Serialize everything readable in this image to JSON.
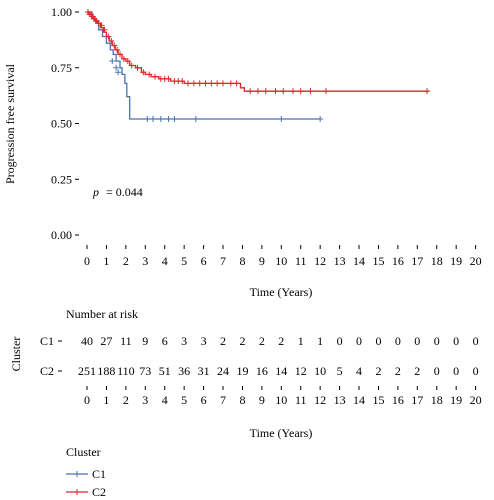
{
  "chart_data": {
    "type": "line",
    "subtype": "kaplan-meier",
    "ylabel": "Progression free survival",
    "xlabel": "Time (Years)",
    "xlim": [
      0,
      20
    ],
    "ylim": [
      0,
      1
    ],
    "x_ticks": [
      0,
      1,
      2,
      3,
      4,
      5,
      6,
      7,
      8,
      9,
      10,
      11,
      12,
      13,
      14,
      15,
      16,
      17,
      18,
      19,
      20
    ],
    "y_ticks": [
      "0.00",
      "0.25",
      "0.50",
      "0.75",
      "1.00"
    ],
    "y_tick_values": [
      0,
      0.25,
      0.5,
      0.75,
      1.0
    ],
    "annotation_p_label": "p",
    "annotation_p_value": "= 0.044",
    "series": [
      {
        "name": "C1",
        "color": "#4a72b0",
        "steps": [
          [
            0,
            1.0
          ],
          [
            0.25,
            0.97
          ],
          [
            0.45,
            0.95
          ],
          [
            0.6,
            0.92
          ],
          [
            0.8,
            0.89
          ],
          [
            1.0,
            0.86
          ],
          [
            1.2,
            0.83
          ],
          [
            1.35,
            0.81
          ],
          [
            1.5,
            0.78
          ],
          [
            1.7,
            0.75
          ],
          [
            1.8,
            0.72
          ],
          [
            1.95,
            0.68
          ],
          [
            2.05,
            0.62
          ],
          [
            2.2,
            0.52
          ],
          [
            12.0,
            0.52
          ]
        ],
        "censors": [
          [
            1.3,
            0.78
          ],
          [
            1.5,
            0.75
          ],
          [
            1.6,
            0.73
          ],
          [
            3.1,
            0.52
          ],
          [
            3.4,
            0.52
          ],
          [
            3.8,
            0.52
          ],
          [
            4.2,
            0.52
          ],
          [
            4.5,
            0.52
          ],
          [
            5.6,
            0.52
          ],
          [
            10.0,
            0.52
          ],
          [
            12.0,
            0.52
          ]
        ]
      },
      {
        "name": "C2",
        "color": "#e0262a",
        "steps": [
          [
            0,
            1.0
          ],
          [
            0.1,
            0.99
          ],
          [
            0.25,
            0.98
          ],
          [
            0.4,
            0.96
          ],
          [
            0.55,
            0.95
          ],
          [
            0.7,
            0.93
          ],
          [
            0.85,
            0.91
          ],
          [
            1.0,
            0.89
          ],
          [
            1.15,
            0.87
          ],
          [
            1.3,
            0.85
          ],
          [
            1.45,
            0.83
          ],
          [
            1.6,
            0.81
          ],
          [
            1.8,
            0.79
          ],
          [
            2.0,
            0.78
          ],
          [
            2.2,
            0.76
          ],
          [
            2.5,
            0.75
          ],
          [
            2.8,
            0.73
          ],
          [
            3.0,
            0.72
          ],
          [
            3.3,
            0.71
          ],
          [
            3.7,
            0.7
          ],
          [
            4.3,
            0.69
          ],
          [
            5.0,
            0.68
          ],
          [
            7.9,
            0.66
          ],
          [
            8.1,
            0.645
          ],
          [
            17.6,
            0.645
          ]
        ],
        "censors": [
          [
            0.05,
            1.0
          ],
          [
            0.12,
            0.99
          ],
          [
            0.2,
            0.99
          ],
          [
            0.3,
            0.98
          ],
          [
            0.35,
            0.97
          ],
          [
            0.5,
            0.96
          ],
          [
            0.6,
            0.95
          ],
          [
            0.75,
            0.94
          ],
          [
            0.9,
            0.92
          ],
          [
            1.1,
            0.89
          ],
          [
            1.25,
            0.87
          ],
          [
            1.4,
            0.85
          ],
          [
            1.55,
            0.83
          ],
          [
            1.7,
            0.81
          ],
          [
            1.9,
            0.79
          ],
          [
            2.1,
            0.78
          ],
          [
            2.3,
            0.76
          ],
          [
            2.6,
            0.75
          ],
          [
            2.9,
            0.73
          ],
          [
            3.2,
            0.72
          ],
          [
            3.5,
            0.71
          ],
          [
            3.8,
            0.7
          ],
          [
            4.0,
            0.7
          ],
          [
            4.2,
            0.7
          ],
          [
            4.5,
            0.69
          ],
          [
            4.7,
            0.69
          ],
          [
            4.9,
            0.69
          ],
          [
            5.2,
            0.68
          ],
          [
            5.5,
            0.68
          ],
          [
            5.8,
            0.68
          ],
          [
            6.1,
            0.68
          ],
          [
            6.4,
            0.68
          ],
          [
            6.7,
            0.68
          ],
          [
            7.0,
            0.68
          ],
          [
            7.4,
            0.68
          ],
          [
            7.7,
            0.68
          ],
          [
            8.4,
            0.645
          ],
          [
            8.8,
            0.645
          ],
          [
            9.2,
            0.645
          ],
          [
            9.7,
            0.645
          ],
          [
            10.1,
            0.645
          ],
          [
            10.6,
            0.645
          ],
          [
            11.0,
            0.645
          ],
          [
            11.5,
            0.645
          ],
          [
            12.3,
            0.645
          ],
          [
            17.5,
            0.645
          ]
        ]
      }
    ],
    "risk_table": {
      "title": "Number at risk",
      "ylabel": "Cluster",
      "xlabel": "Time (Years)",
      "x_ticks": [
        0,
        1,
        2,
        3,
        4,
        5,
        6,
        7,
        8,
        9,
        10,
        11,
        12,
        13,
        14,
        15,
        16,
        17,
        18,
        19,
        20
      ],
      "rows": [
        {
          "name": "C1",
          "values": [
            40,
            27,
            11,
            9,
            6,
            3,
            3,
            2,
            2,
            2,
            2,
            1,
            1,
            0,
            0,
            0,
            0,
            0,
            0,
            0,
            0
          ]
        },
        {
          "name": "C2",
          "values": [
            251,
            188,
            110,
            73,
            51,
            36,
            31,
            24,
            19,
            16,
            14,
            12,
            10,
            5,
            4,
            2,
            2,
            2,
            0,
            0,
            0
          ]
        }
      ]
    },
    "legend": {
      "title": "Cluster",
      "position": "bottom-left",
      "entries": [
        "C1",
        "C2"
      ]
    }
  }
}
